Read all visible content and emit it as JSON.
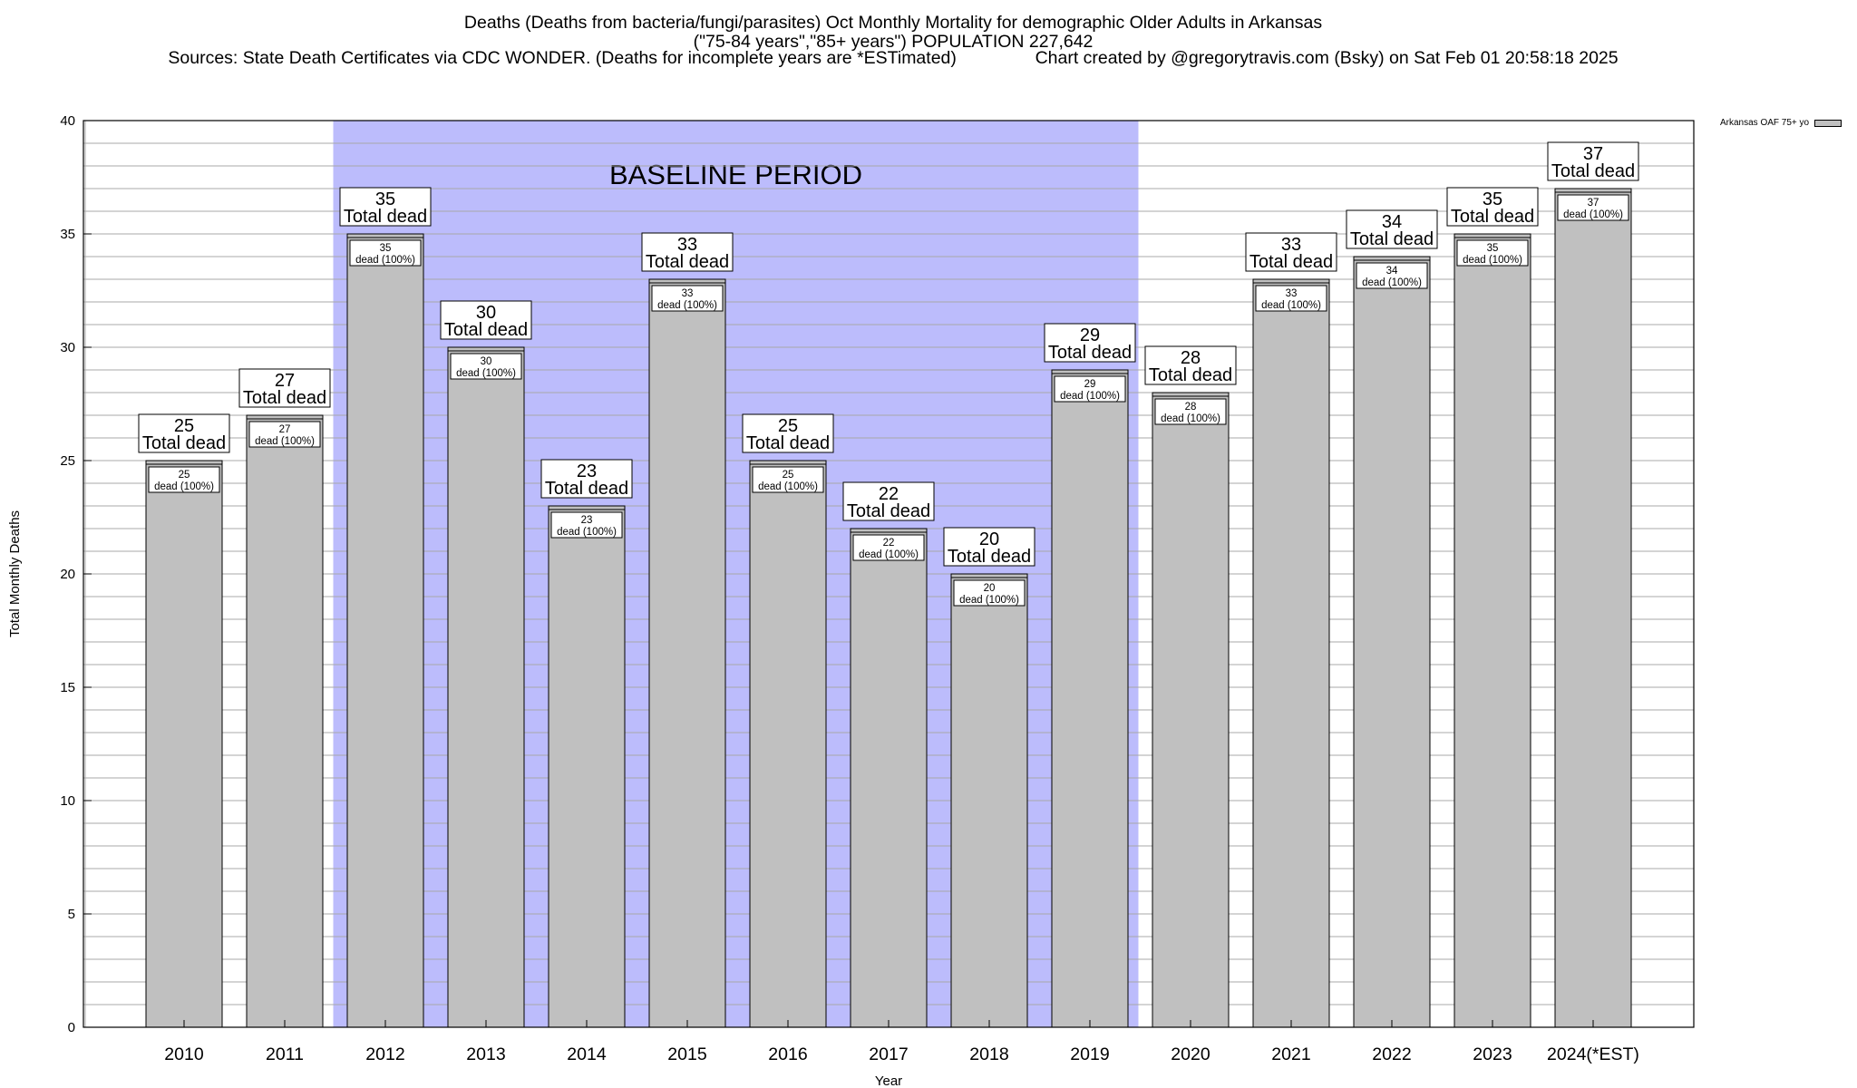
{
  "chart_data": {
    "type": "bar",
    "title_lines": [
      "Deaths (Deaths from bacteria/fungi/parasites) Oct Monthly Mortality for demographic Older Adults in Arkansas",
      "(\"75-84 years\",\"85+ years\") POPULATION 227,642",
      "Sources: State Death Certificates via CDC WONDER. (Deaths for incomplete years are *ESTimated)                Chart created by @gregorytravis.com (Bsky) on Sat Feb 01 20:58:18 2025"
    ],
    "xlabel": "Year",
    "ylabel": "Total Monthly Deaths",
    "ylim": [
      0,
      40
    ],
    "yticks": [
      0,
      5,
      10,
      15,
      20,
      25,
      30,
      35,
      40
    ],
    "grid": true,
    "legend_position": "top-right",
    "series": [
      {
        "name": "Arkansas OAF 75+ yo",
        "color": "#c0c0c0",
        "values": [
          25,
          27,
          35,
          30,
          23,
          33,
          25,
          22,
          20,
          29,
          28,
          33,
          34,
          35,
          37
        ]
      }
    ],
    "categories": [
      "2010",
      "2011",
      "2012",
      "2013",
      "2014",
      "2015",
      "2016",
      "2017",
      "2018",
      "2019",
      "2020",
      "2021",
      "2022",
      "2023",
      "2024(*EST)"
    ],
    "outer_label_suffix": "Total dead",
    "inner_label_suffix": "dead (100%)",
    "baseline": {
      "label": "BASELINE PERIOD",
      "start": "2012",
      "end": "2019",
      "color": "#bcbcfc"
    }
  }
}
